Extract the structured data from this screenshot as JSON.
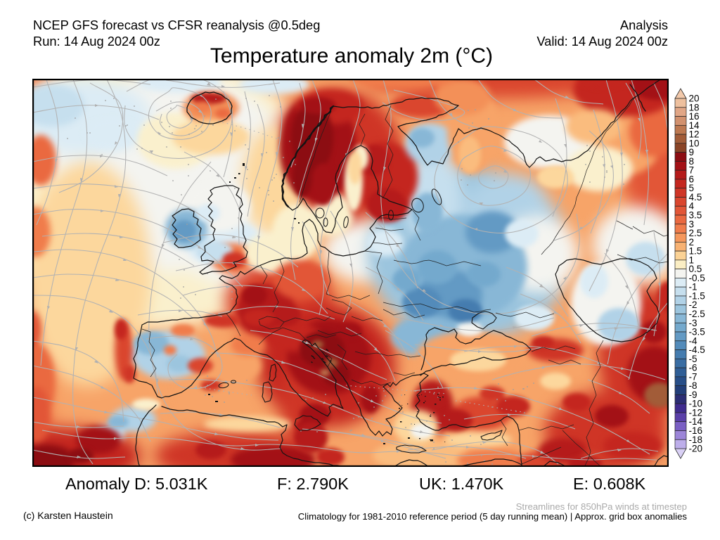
{
  "header": {
    "left": {
      "line1": "NCEP GFS forecast vs CFSR reanalysis @0.5deg",
      "line2": "Run: 14 Aug 2024 00z"
    },
    "right": {
      "line1": "Analysis",
      "line2": "Valid: 14 Aug 2024 00z"
    }
  },
  "title": "Temperature anomaly 2m (°C)",
  "footer": {
    "stats": [
      {
        "label": "Anomaly D:",
        "value": "5.031K"
      },
      {
        "label": "F:",
        "value": "2.790K"
      },
      {
        "label": "UK:",
        "value": "1.470K"
      },
      {
        "label": "E:",
        "value": "0.608K"
      }
    ],
    "streamline_note": "Streamlines for 850hPa winds at timestep",
    "credit": "(c) Karsten Haustein",
    "climatology_note": "Climatology for 1981-2010 reference period (5 day running mean) | Approx. grid box anomalies"
  },
  "colorbar": {
    "ticks": [
      "20",
      "18",
      "16",
      "14",
      "12",
      "10",
      "9",
      "8",
      "7",
      "6",
      "5",
      "4.5",
      "4",
      "3.5",
      "3",
      "2.5",
      "2",
      "1.5",
      "1",
      "0.5",
      "-0.5",
      "-1",
      "-1.5",
      "-2",
      "-2.5",
      "-3",
      "-3.5",
      "-4",
      "-4.5",
      "-5",
      "-6",
      "-7",
      "-8",
      "-9",
      "-10",
      "-12",
      "-14",
      "-16",
      "-18",
      "-20"
    ],
    "segment_colors": [
      "#eec09e",
      "#e1a686",
      "#d2916e",
      "#bd7850",
      "#a25c38",
      "#8a4426",
      "#8c0d12",
      "#a31116",
      "#b51b1b",
      "#c4261f",
      "#cf3526",
      "#da462e",
      "#e25637",
      "#ea6940",
      "#f07c4b",
      "#f5975c",
      "#f8b273",
      "#fbd295",
      "#fbeec4",
      "#f4f4f0",
      "#dcecf5",
      "#c6dfee",
      "#b1d2e7",
      "#9cc5de",
      "#88b7d6",
      "#74a9cd",
      "#639ac4",
      "#538bba",
      "#457caf",
      "#396da3",
      "#2f5e96",
      "#274e88",
      "#223e79",
      "#2b2d74",
      "#3f2b8e",
      "#5a3fa8",
      "#7a5fc4",
      "#9c85d8",
      "#bdaeea"
    ],
    "arrow_top_color": "#f2c9ab",
    "arrow_bottom_color": "#d9d0f5"
  },
  "map": {
    "depicts": "2m temperature anomaly field over Europe and surroundings with 850hPa wind streamlines, coastlines and country borders"
  }
}
